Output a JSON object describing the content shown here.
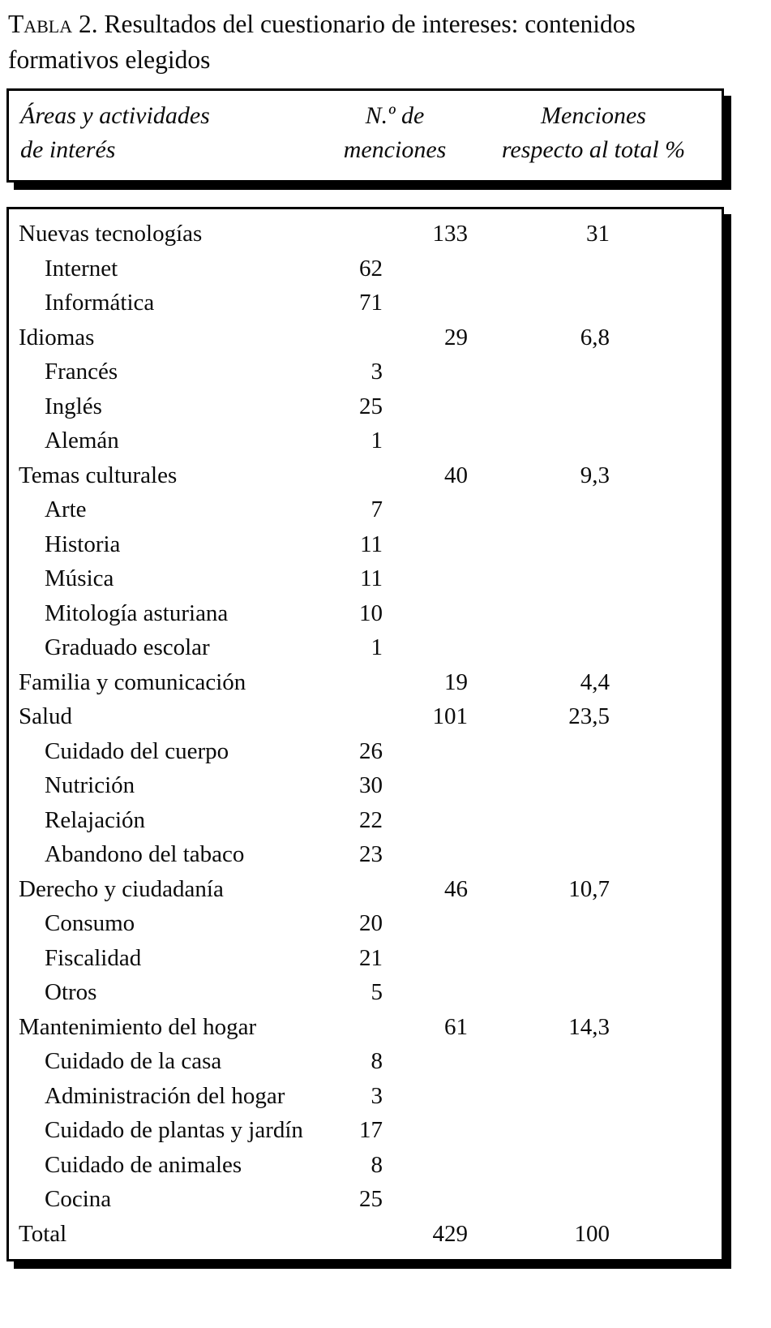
{
  "title": {
    "label": "Tabla 2.",
    "line1_rest": "Resultados del cuestionario de intereses: contenidos",
    "line2": "formativos elegidos"
  },
  "table": {
    "headers": {
      "col1_line1": "Áreas y actividades",
      "col1_line2": "de interés",
      "col2_line1": "N.º de",
      "col2_line2": "menciones",
      "col3_line1": "Menciones",
      "col3_line2": "respecto al total %"
    },
    "rows": [
      {
        "label": "Nuevas tecnologías",
        "indent": 0,
        "sub": "",
        "total": "133",
        "pct": "31"
      },
      {
        "label": "Internet",
        "indent": 1,
        "sub": "62",
        "total": "",
        "pct": ""
      },
      {
        "label": "Informática",
        "indent": 1,
        "sub": "71",
        "total": "",
        "pct": ""
      },
      {
        "label": "Idiomas",
        "indent": 0,
        "sub": "",
        "total": "29",
        "pct": "6,8"
      },
      {
        "label": "Francés",
        "indent": 1,
        "sub": "3",
        "total": "",
        "pct": ""
      },
      {
        "label": "Inglés",
        "indent": 1,
        "sub": "25",
        "total": "",
        "pct": ""
      },
      {
        "label": "Alemán",
        "indent": 1,
        "sub": "1",
        "total": "",
        "pct": ""
      },
      {
        "label": "Temas culturales",
        "indent": 0,
        "sub": "",
        "total": "40",
        "pct": "9,3"
      },
      {
        "label": "Arte",
        "indent": 1,
        "sub": "7",
        "total": "",
        "pct": ""
      },
      {
        "label": "Historia",
        "indent": 1,
        "sub": "11",
        "total": "",
        "pct": ""
      },
      {
        "label": "Música",
        "indent": 1,
        "sub": "11",
        "total": "",
        "pct": ""
      },
      {
        "label": "Mitología asturiana",
        "indent": 1,
        "sub": "10",
        "total": "",
        "pct": ""
      },
      {
        "label": "Graduado escolar",
        "indent": 1,
        "sub": "1",
        "total": "",
        "pct": ""
      },
      {
        "label": "Familia y comunicación",
        "indent": 0,
        "sub": "",
        "total": "19",
        "pct": "4,4"
      },
      {
        "label": "Salud",
        "indent": 0,
        "sub": "",
        "total": "101",
        "pct": "23,5"
      },
      {
        "label": "Cuidado del cuerpo",
        "indent": 1,
        "sub": "26",
        "total": "",
        "pct": ""
      },
      {
        "label": "Nutrición",
        "indent": 1,
        "sub": "30",
        "total": "",
        "pct": ""
      },
      {
        "label": "Relajación",
        "indent": 1,
        "sub": "22",
        "total": "",
        "pct": ""
      },
      {
        "label": "Abandono del tabaco",
        "indent": 1,
        "sub": "23",
        "total": "",
        "pct": ""
      },
      {
        "label": "Derecho y ciudadanía",
        "indent": 0,
        "sub": "",
        "total": "46",
        "pct": "10,7"
      },
      {
        "label": "Consumo",
        "indent": 1,
        "sub": "20",
        "total": "",
        "pct": ""
      },
      {
        "label": "Fiscalidad",
        "indent": 1,
        "sub": "21",
        "total": "",
        "pct": ""
      },
      {
        "label": "Otros",
        "indent": 1,
        "sub": "5",
        "total": "",
        "pct": ""
      },
      {
        "label": "Mantenimiento del hogar",
        "indent": 0,
        "sub": "",
        "total": "61",
        "pct": "14,3"
      },
      {
        "label": "Cuidado de la casa",
        "indent": 1,
        "sub": "8",
        "total": "",
        "pct": ""
      },
      {
        "label": "Administración del hogar",
        "indent": 1,
        "sub": "3",
        "total": "",
        "pct": ""
      },
      {
        "label": "Cuidado de plantas y jardín",
        "indent": 1,
        "sub": "17",
        "total": "",
        "pct": ""
      },
      {
        "label": "Cuidado de animales",
        "indent": 1,
        "sub": "8",
        "total": "",
        "pct": ""
      },
      {
        "label": "Cocina",
        "indent": 1,
        "sub": "25",
        "total": "",
        "pct": ""
      }
    ],
    "total_row": {
      "label": "Total",
      "indent": 0,
      "sub": "",
      "total": "429",
      "pct": "100"
    }
  }
}
